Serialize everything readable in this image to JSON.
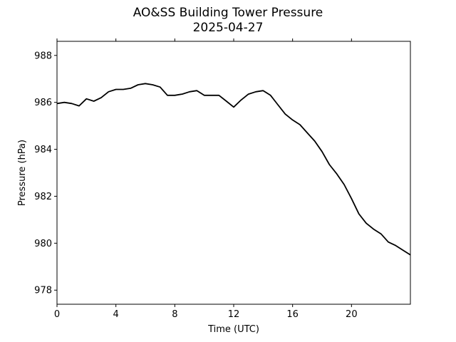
{
  "chart_data": {
    "type": "line",
    "title": "AO&SS Building Tower Pressure",
    "subtitle": "2025-04-27",
    "xlabel": "Time (UTC)",
    "ylabel": "Pressure (hPa)",
    "xlim": [
      0,
      24
    ],
    "ylim": [
      977.4,
      988.6
    ],
    "x_ticks": [
      0,
      4,
      8,
      12,
      16,
      20
    ],
    "y_ticks": [
      978,
      980,
      982,
      984,
      986,
      988
    ],
    "grid": false,
    "line_color": "#000000",
    "series": [
      {
        "x": [
          0,
          0.5,
          1.0,
          1.5,
          2.0,
          2.5,
          3.0,
          3.5,
          4.0,
          4.5,
          5.0,
          5.5,
          6.0,
          6.5,
          7.0,
          7.5,
          8.0,
          8.5,
          9.0,
          9.5,
          10.0,
          10.5,
          11.0,
          11.5,
          12.0,
          12.5,
          13.0,
          13.5,
          14.0,
          14.5,
          15.0,
          15.5,
          16.0,
          16.5,
          17.0,
          17.5,
          18.0,
          18.5,
          19.0,
          19.5,
          20.0,
          20.5,
          21.0,
          21.5,
          22.0,
          22.5,
          23.0,
          23.5,
          24.0
        ],
        "values": [
          985.95,
          986.0,
          985.95,
          985.85,
          986.15,
          986.05,
          986.2,
          986.45,
          986.55,
          986.55,
          986.6,
          986.75,
          986.8,
          986.75,
          986.65,
          986.3,
          986.3,
          986.35,
          986.45,
          986.5,
          986.3,
          986.3,
          986.3,
          986.05,
          985.8,
          986.1,
          986.35,
          986.45,
          986.5,
          986.3,
          985.9,
          985.5,
          985.25,
          985.05,
          984.7,
          984.35,
          983.9,
          983.35,
          982.95,
          982.5,
          981.9,
          981.25,
          980.85,
          980.6,
          980.4,
          980.05,
          979.9,
          979.7,
          979.5
        ]
      }
    ]
  }
}
